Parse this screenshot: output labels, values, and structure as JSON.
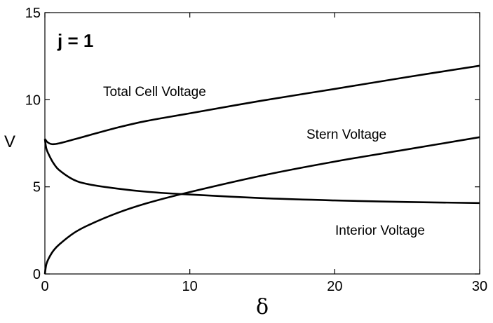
{
  "chart_data": {
    "type": "line",
    "title": "",
    "xlabel": "δ",
    "ylabel": "V",
    "xlim": [
      0,
      30
    ],
    "ylim": [
      0,
      15
    ],
    "xticks": [
      "0",
      "10",
      "20",
      "30"
    ],
    "yticks": [
      "0",
      "5",
      "10",
      "15"
    ],
    "grid": false,
    "annotations": {
      "param": "j = 1",
      "total": "Total Cell Voltage",
      "stern": "Stern Voltage",
      "interior": "Interior Voltage"
    },
    "series": [
      {
        "name": "Total Cell Voltage",
        "x": [
          0,
          0.2,
          0.5,
          1,
          2,
          3,
          5,
          7,
          10,
          15,
          20,
          25,
          30
        ],
        "y": [
          7.75,
          7.55,
          7.45,
          7.5,
          7.72,
          7.95,
          8.4,
          8.78,
          9.22,
          9.95,
          10.62,
          11.3,
          11.95
        ]
      },
      {
        "name": "Stern Voltage",
        "x": [
          0,
          0.1,
          0.3,
          0.6,
          1,
          2,
          3,
          5,
          7,
          9.5,
          15,
          20,
          25,
          30
        ],
        "y": [
          0,
          0.55,
          0.95,
          1.35,
          1.7,
          2.35,
          2.8,
          3.5,
          4.05,
          4.6,
          5.65,
          6.45,
          7.15,
          7.85
        ]
      },
      {
        "name": "Interior Voltage",
        "x": [
          0,
          0.1,
          0.3,
          0.6,
          1,
          2,
          3,
          5,
          7,
          9.5,
          15,
          20,
          25,
          30
        ],
        "y": [
          7.75,
          7.2,
          6.8,
          6.35,
          5.95,
          5.4,
          5.15,
          4.9,
          4.72,
          4.58,
          4.35,
          4.22,
          4.13,
          4.07
        ]
      }
    ]
  }
}
